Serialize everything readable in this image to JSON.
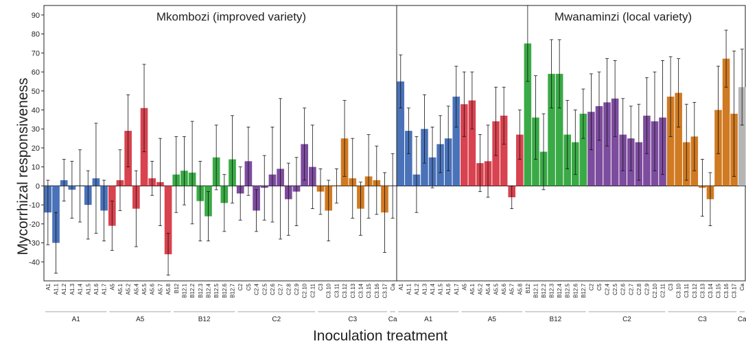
{
  "chart_data": {
    "type": "bar",
    "ylabel": "Mycorrhizal responsiveness",
    "xlabel": "Inoculation treatment",
    "ylim": [
      -50,
      95
    ],
    "yticks": [
      -40,
      -30,
      -20,
      -10,
      0,
      10,
      20,
      30,
      40,
      50,
      60,
      70,
      80,
      90
    ],
    "grid": false,
    "group_colors": {
      "A1": "#4a72b8",
      "A5": "#d8434f",
      "B12": "#3aaa46",
      "C2": "#7d4c9e",
      "C3": "#d07a22",
      "Ca": "#b5b5b5"
    },
    "panels": [
      {
        "title": "Mkombozi (improved variety)",
        "categories": [
          "A1",
          "A1.1",
          "A1.2",
          "A1.3",
          "A1.4",
          "A1.5",
          "A1.6",
          "A1.7",
          "A5",
          "A5.1",
          "A5.2",
          "A5.4",
          "A5.5",
          "A5.6",
          "A5.7",
          "A5.8",
          "B12",
          "B12.1",
          "B12.2",
          "B12.3",
          "B12.4",
          "B12.5",
          "B12.6",
          "B12.7",
          "C2",
          "C5",
          "C2.4",
          "C2.5",
          "C2.6",
          "C2.7",
          "C2.8",
          "C2.9",
          "C2.10",
          "C2.11",
          "C3",
          "C3.10",
          "C3.11",
          "C3.12",
          "C3.13",
          "C3.14",
          "C3.15",
          "C3.16",
          "C3.17",
          "Ca"
        ],
        "groups": [
          "A1",
          "A1",
          "A1",
          "A1",
          "A1",
          "A1",
          "A1",
          "A1",
          "A5",
          "A5",
          "A5",
          "A5",
          "A5",
          "A5",
          "A5",
          "A5",
          "B12",
          "B12",
          "B12",
          "B12",
          "B12",
          "B12",
          "B12",
          "B12",
          "C2",
          "C2",
          "C2",
          "C2",
          "C2",
          "C2",
          "C2",
          "C2",
          "C2",
          "C2",
          "C3",
          "C3",
          "C3",
          "C3",
          "C3",
          "C3",
          "C3",
          "C3",
          "C3",
          "Ca"
        ],
        "values": [
          -14,
          -30,
          3,
          -2,
          0,
          -10,
          4,
          -13,
          -21,
          3,
          29,
          -12,
          41,
          4,
          2,
          -36,
          6,
          8,
          7,
          -8,
          -16,
          15,
          -9,
          14,
          -4,
          13,
          -13,
          -1,
          6,
          9,
          -7,
          -3,
          22,
          10,
          -3,
          -13,
          0,
          25,
          4,
          -12,
          5,
          3,
          -14,
          0
        ],
        "errors": [
          17,
          16,
          11,
          15,
          19,
          18,
          29,
          16,
          13,
          16,
          19,
          20,
          23,
          9,
          23,
          11,
          20,
          18,
          27,
          21,
          13,
          17,
          15,
          23,
          14,
          18,
          11,
          17,
          25,
          37,
          19,
          18,
          19,
          22,
          12,
          16,
          9,
          20,
          21,
          14,
          22,
          18,
          21,
          17
        ],
        "group_spans": [
          {
            "label": "A1",
            "start": 0,
            "end": 7
          },
          {
            "label": "A5",
            "start": 8,
            "end": 15
          },
          {
            "label": "B12",
            "start": 16,
            "end": 23
          },
          {
            "label": "C2",
            "start": 24,
            "end": 33
          },
          {
            "label": "C3",
            "start": 34,
            "end": 42
          },
          {
            "label": "Ca",
            "start": 43,
            "end": 43
          }
        ]
      },
      {
        "title": "Mwanaminzi (local variety)",
        "categories": [
          "A1",
          "A1.1",
          "A1.2",
          "A1.3",
          "A1.4",
          "A1.5",
          "A1.6",
          "A1.7",
          "A5",
          "A5.1",
          "A5.2",
          "A5.4",
          "A5.5",
          "A5.6",
          "A5.7",
          "A5.8",
          "B12",
          "B12.1",
          "B12.2",
          "B12.3",
          "B12.4",
          "B12.5",
          "B12.6",
          "B12.7",
          "C2",
          "C5",
          "C2.4",
          "C2.5",
          "C2.6",
          "C2.7",
          "C2.8",
          "C2.9",
          "C2.10",
          "C2.11",
          "C3",
          "C3.10",
          "C3.11",
          "C3.12",
          "C3.13",
          "C3.14",
          "C3.15",
          "C3.16",
          "C3.17",
          "Ca"
        ],
        "groups": [
          "A1",
          "A1",
          "A1",
          "A1",
          "A1",
          "A1",
          "A1",
          "A1",
          "A5",
          "A5",
          "A5",
          "A5",
          "A5",
          "A5",
          "A5",
          "A5",
          "B12",
          "B12",
          "B12",
          "B12",
          "B12",
          "B12",
          "B12",
          "B12",
          "C2",
          "C2",
          "C2",
          "C2",
          "C2",
          "C2",
          "C2",
          "C2",
          "C2",
          "C2",
          "C3",
          "C3",
          "C3",
          "C3",
          "C3",
          "C3",
          "C3",
          "C3",
          "C3",
          "Ca"
        ],
        "values": [
          55,
          29,
          6,
          30,
          15,
          22,
          25,
          47,
          43,
          45,
          12,
          13,
          34,
          37,
          -6,
          27,
          75,
          36,
          18,
          59,
          59,
          27,
          23,
          38,
          39,
          42,
          44,
          46,
          27,
          25,
          23,
          37,
          34,
          36,
          47,
          49,
          23,
          26,
          -1,
          -7,
          40,
          67,
          38,
          52
        ],
        "errors": [
          14,
          12,
          20,
          18,
          16,
          15,
          17,
          16,
          17,
          15,
          15,
          19,
          18,
          15,
          6,
          13,
          20,
          22,
          20,
          18,
          18,
          18,
          17,
          13,
          20,
          18,
          23,
          20,
          19,
          17,
          20,
          20,
          26,
          30,
          21,
          18,
          20,
          18,
          15,
          14,
          23,
          15,
          33,
          20
        ],
        "group_spans": [
          {
            "label": "A1",
            "start": 0,
            "end": 7
          },
          {
            "label": "A5",
            "start": 8,
            "end": 15
          },
          {
            "label": "B12",
            "start": 16,
            "end": 23
          },
          {
            "label": "C2",
            "start": 24,
            "end": 33
          },
          {
            "label": "C3",
            "start": 34,
            "end": 42
          },
          {
            "label": "Ca",
            "start": 43,
            "end": 43
          }
        ]
      }
    ]
  }
}
